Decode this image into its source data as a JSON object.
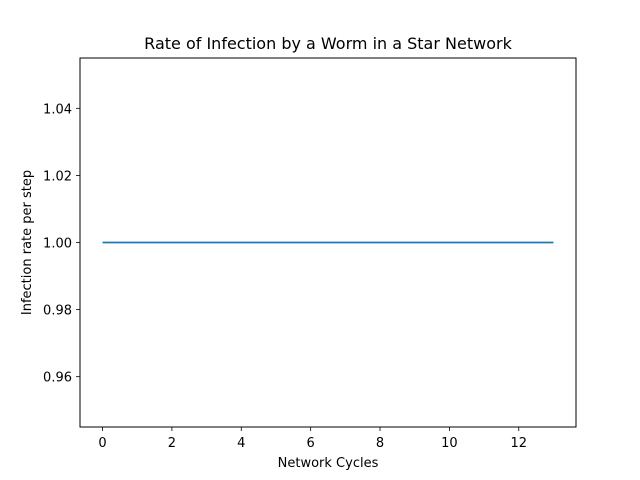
{
  "chart_data": {
    "type": "line",
    "title": "Rate of Infection by a Worm in a Star Network",
    "xlabel": "Network Cycles",
    "ylabel": "Infection rate per step",
    "xlim": [
      -0.65,
      13.65
    ],
    "ylim": [
      0.945,
      1.055
    ],
    "xticks": [
      0,
      2,
      4,
      6,
      8,
      10,
      12
    ],
    "xtick_labels": [
      "0",
      "2",
      "4",
      "6",
      "8",
      "10",
      "12"
    ],
    "yticks": [
      0.96,
      0.98,
      1.0,
      1.02,
      1.04
    ],
    "ytick_labels": [
      "0.96",
      "0.98",
      "1.00",
      "1.02",
      "1.04"
    ],
    "grid": false,
    "series": [
      {
        "color": "#1f77b4",
        "x": [
          0,
          1,
          2,
          3,
          4,
          5,
          6,
          7,
          8,
          9,
          10,
          11,
          12,
          13
        ],
        "y": [
          1,
          1,
          1,
          1,
          1,
          1,
          1,
          1,
          1,
          1,
          1,
          1,
          1,
          1
        ]
      }
    ]
  }
}
